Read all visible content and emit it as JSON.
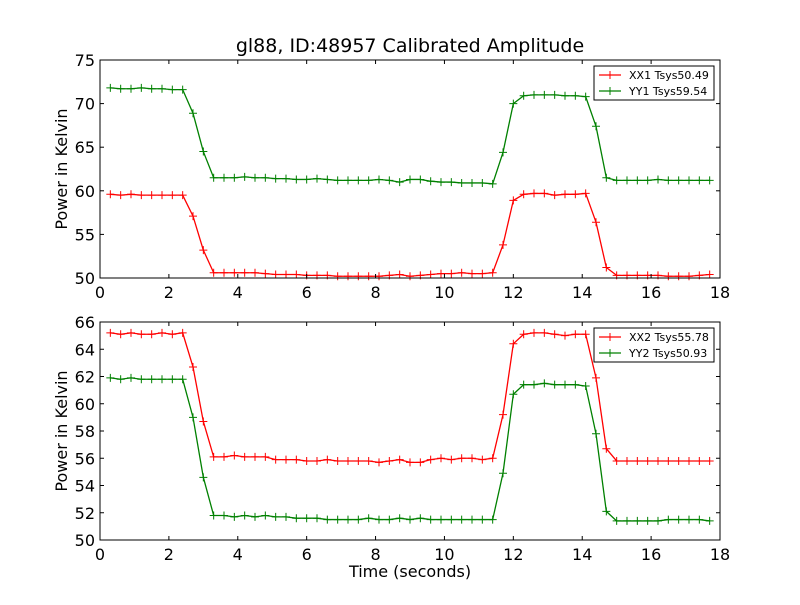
{
  "colors": {
    "red": "#ff0000",
    "green": "#008000"
  },
  "chart_data": [
    {
      "type": "line",
      "title": "gl88, ID:48957 Calibrated Amplitude",
      "xlabel": "",
      "ylabel": "Power in Kelvin",
      "xlim": [
        0,
        18
      ],
      "ylim": [
        50,
        75
      ],
      "xticks": [
        0,
        2,
        4,
        6,
        8,
        10,
        12,
        14,
        16,
        18
      ],
      "yticks": [
        50,
        55,
        60,
        65,
        70,
        75
      ],
      "x_tick_labels": [
        "0",
        "2",
        "4",
        "6",
        "8",
        "10",
        "12",
        "14",
        "16",
        "18"
      ],
      "y_tick_labels": [
        "50",
        "55",
        "60",
        "65",
        "70",
        "75"
      ],
      "legend_position": "top-right",
      "grid": false,
      "x": [
        0.3,
        0.6,
        0.9,
        1.2,
        1.5,
        1.8,
        2.1,
        2.4,
        2.7,
        3.0,
        3.3,
        3.6,
        3.9,
        4.2,
        4.5,
        4.8,
        5.1,
        5.4,
        5.7,
        6.0,
        6.3,
        6.6,
        6.9,
        7.2,
        7.5,
        7.8,
        8.1,
        8.4,
        8.7,
        9.0,
        9.3,
        9.6,
        9.9,
        10.2,
        10.5,
        10.8,
        11.1,
        11.4,
        11.7,
        12.0,
        12.3,
        12.6,
        12.9,
        13.2,
        13.5,
        13.8,
        14.1,
        14.4,
        14.7,
        15.0,
        15.3,
        15.6,
        15.9,
        16.2,
        16.5,
        16.8,
        17.1,
        17.4,
        17.7
      ],
      "series": [
        {
          "name": "XX1 Tsys50.49",
          "color": "#ff0000",
          "values": [
            59.6,
            59.5,
            59.6,
            59.5,
            59.5,
            59.5,
            59.5,
            59.5,
            57.1,
            53.2,
            50.6,
            50.6,
            50.6,
            50.6,
            50.6,
            50.5,
            50.4,
            50.4,
            50.4,
            50.3,
            50.3,
            50.3,
            50.2,
            50.2,
            50.2,
            50.2,
            50.2,
            50.3,
            50.4,
            50.2,
            50.3,
            50.4,
            50.5,
            50.5,
            50.6,
            50.5,
            50.5,
            50.6,
            53.8,
            58.9,
            59.6,
            59.7,
            59.7,
            59.5,
            59.6,
            59.6,
            59.7,
            56.4,
            51.2,
            50.3,
            50.3,
            50.3,
            50.3,
            50.3,
            50.2,
            50.2,
            50.2,
            50.3,
            50.4
          ]
        },
        {
          "name": "YY1 Tsys59.54",
          "color": "#008000",
          "values": [
            71.8,
            71.7,
            71.7,
            71.8,
            71.7,
            71.7,
            71.6,
            71.6,
            68.9,
            64.5,
            61.5,
            61.5,
            61.5,
            61.6,
            61.5,
            61.5,
            61.4,
            61.4,
            61.3,
            61.3,
            61.4,
            61.3,
            61.2,
            61.2,
            61.2,
            61.2,
            61.3,
            61.2,
            61.0,
            61.3,
            61.3,
            61.1,
            61.0,
            61.0,
            60.9,
            60.9,
            60.9,
            60.8,
            64.4,
            70.0,
            70.9,
            71.0,
            71.0,
            71.0,
            70.9,
            70.9,
            70.8,
            67.4,
            61.5,
            61.2,
            61.2,
            61.2,
            61.2,
            61.3,
            61.2,
            61.2,
            61.2,
            61.2,
            61.2
          ]
        }
      ]
    },
    {
      "type": "line",
      "title": "",
      "xlabel": "Time (seconds)",
      "ylabel": "Power in Kelvin",
      "xlim": [
        0,
        18
      ],
      "ylim": [
        50,
        66
      ],
      "xticks": [
        0,
        2,
        4,
        6,
        8,
        10,
        12,
        14,
        16,
        18
      ],
      "yticks": [
        50,
        52,
        54,
        56,
        58,
        60,
        62,
        64,
        66
      ],
      "x_tick_labels": [
        "0",
        "2",
        "4",
        "6",
        "8",
        "10",
        "12",
        "14",
        "16",
        "18"
      ],
      "y_tick_labels": [
        "50",
        "52",
        "54",
        "56",
        "58",
        "60",
        "62",
        "64",
        "66"
      ],
      "legend_position": "top-right",
      "grid": false,
      "x": [
        0.3,
        0.6,
        0.9,
        1.2,
        1.5,
        1.8,
        2.1,
        2.4,
        2.7,
        3.0,
        3.3,
        3.6,
        3.9,
        4.2,
        4.5,
        4.8,
        5.1,
        5.4,
        5.7,
        6.0,
        6.3,
        6.6,
        6.9,
        7.2,
        7.5,
        7.8,
        8.1,
        8.4,
        8.7,
        9.0,
        9.3,
        9.6,
        9.9,
        10.2,
        10.5,
        10.8,
        11.1,
        11.4,
        11.7,
        12.0,
        12.3,
        12.6,
        12.9,
        13.2,
        13.5,
        13.8,
        14.1,
        14.4,
        14.7,
        15.0,
        15.3,
        15.6,
        15.9,
        16.2,
        16.5,
        16.8,
        17.1,
        17.4,
        17.7
      ],
      "series": [
        {
          "name": "XX2 Tsys55.78",
          "color": "#ff0000",
          "values": [
            65.2,
            65.1,
            65.2,
            65.1,
            65.1,
            65.2,
            65.1,
            65.2,
            62.7,
            58.7,
            56.1,
            56.1,
            56.2,
            56.1,
            56.1,
            56.1,
            55.9,
            55.9,
            55.9,
            55.8,
            55.8,
            55.9,
            55.8,
            55.8,
            55.8,
            55.8,
            55.7,
            55.8,
            55.9,
            55.7,
            55.7,
            55.9,
            56.0,
            55.9,
            56.0,
            56.0,
            55.9,
            56.0,
            59.2,
            64.4,
            65.1,
            65.2,
            65.2,
            65.1,
            65.0,
            65.1,
            65.1,
            61.9,
            56.7,
            55.8,
            55.8,
            55.8,
            55.8,
            55.8,
            55.8,
            55.8,
            55.8,
            55.8,
            55.8
          ]
        },
        {
          "name": "YY2 Tsys50.93",
          "color": "#008000",
          "values": [
            61.9,
            61.8,
            61.9,
            61.8,
            61.8,
            61.8,
            61.8,
            61.8,
            59.0,
            54.6,
            51.8,
            51.8,
            51.7,
            51.8,
            51.7,
            51.8,
            51.7,
            51.7,
            51.6,
            51.6,
            51.6,
            51.5,
            51.5,
            51.5,
            51.5,
            51.6,
            51.5,
            51.5,
            51.6,
            51.5,
            51.6,
            51.5,
            51.5,
            51.5,
            51.5,
            51.5,
            51.5,
            51.5,
            54.9,
            60.7,
            61.4,
            61.4,
            61.5,
            61.4,
            61.4,
            61.4,
            61.3,
            57.8,
            52.1,
            51.4,
            51.4,
            51.4,
            51.4,
            51.4,
            51.5,
            51.5,
            51.5,
            51.5,
            51.4
          ]
        }
      ]
    }
  ]
}
